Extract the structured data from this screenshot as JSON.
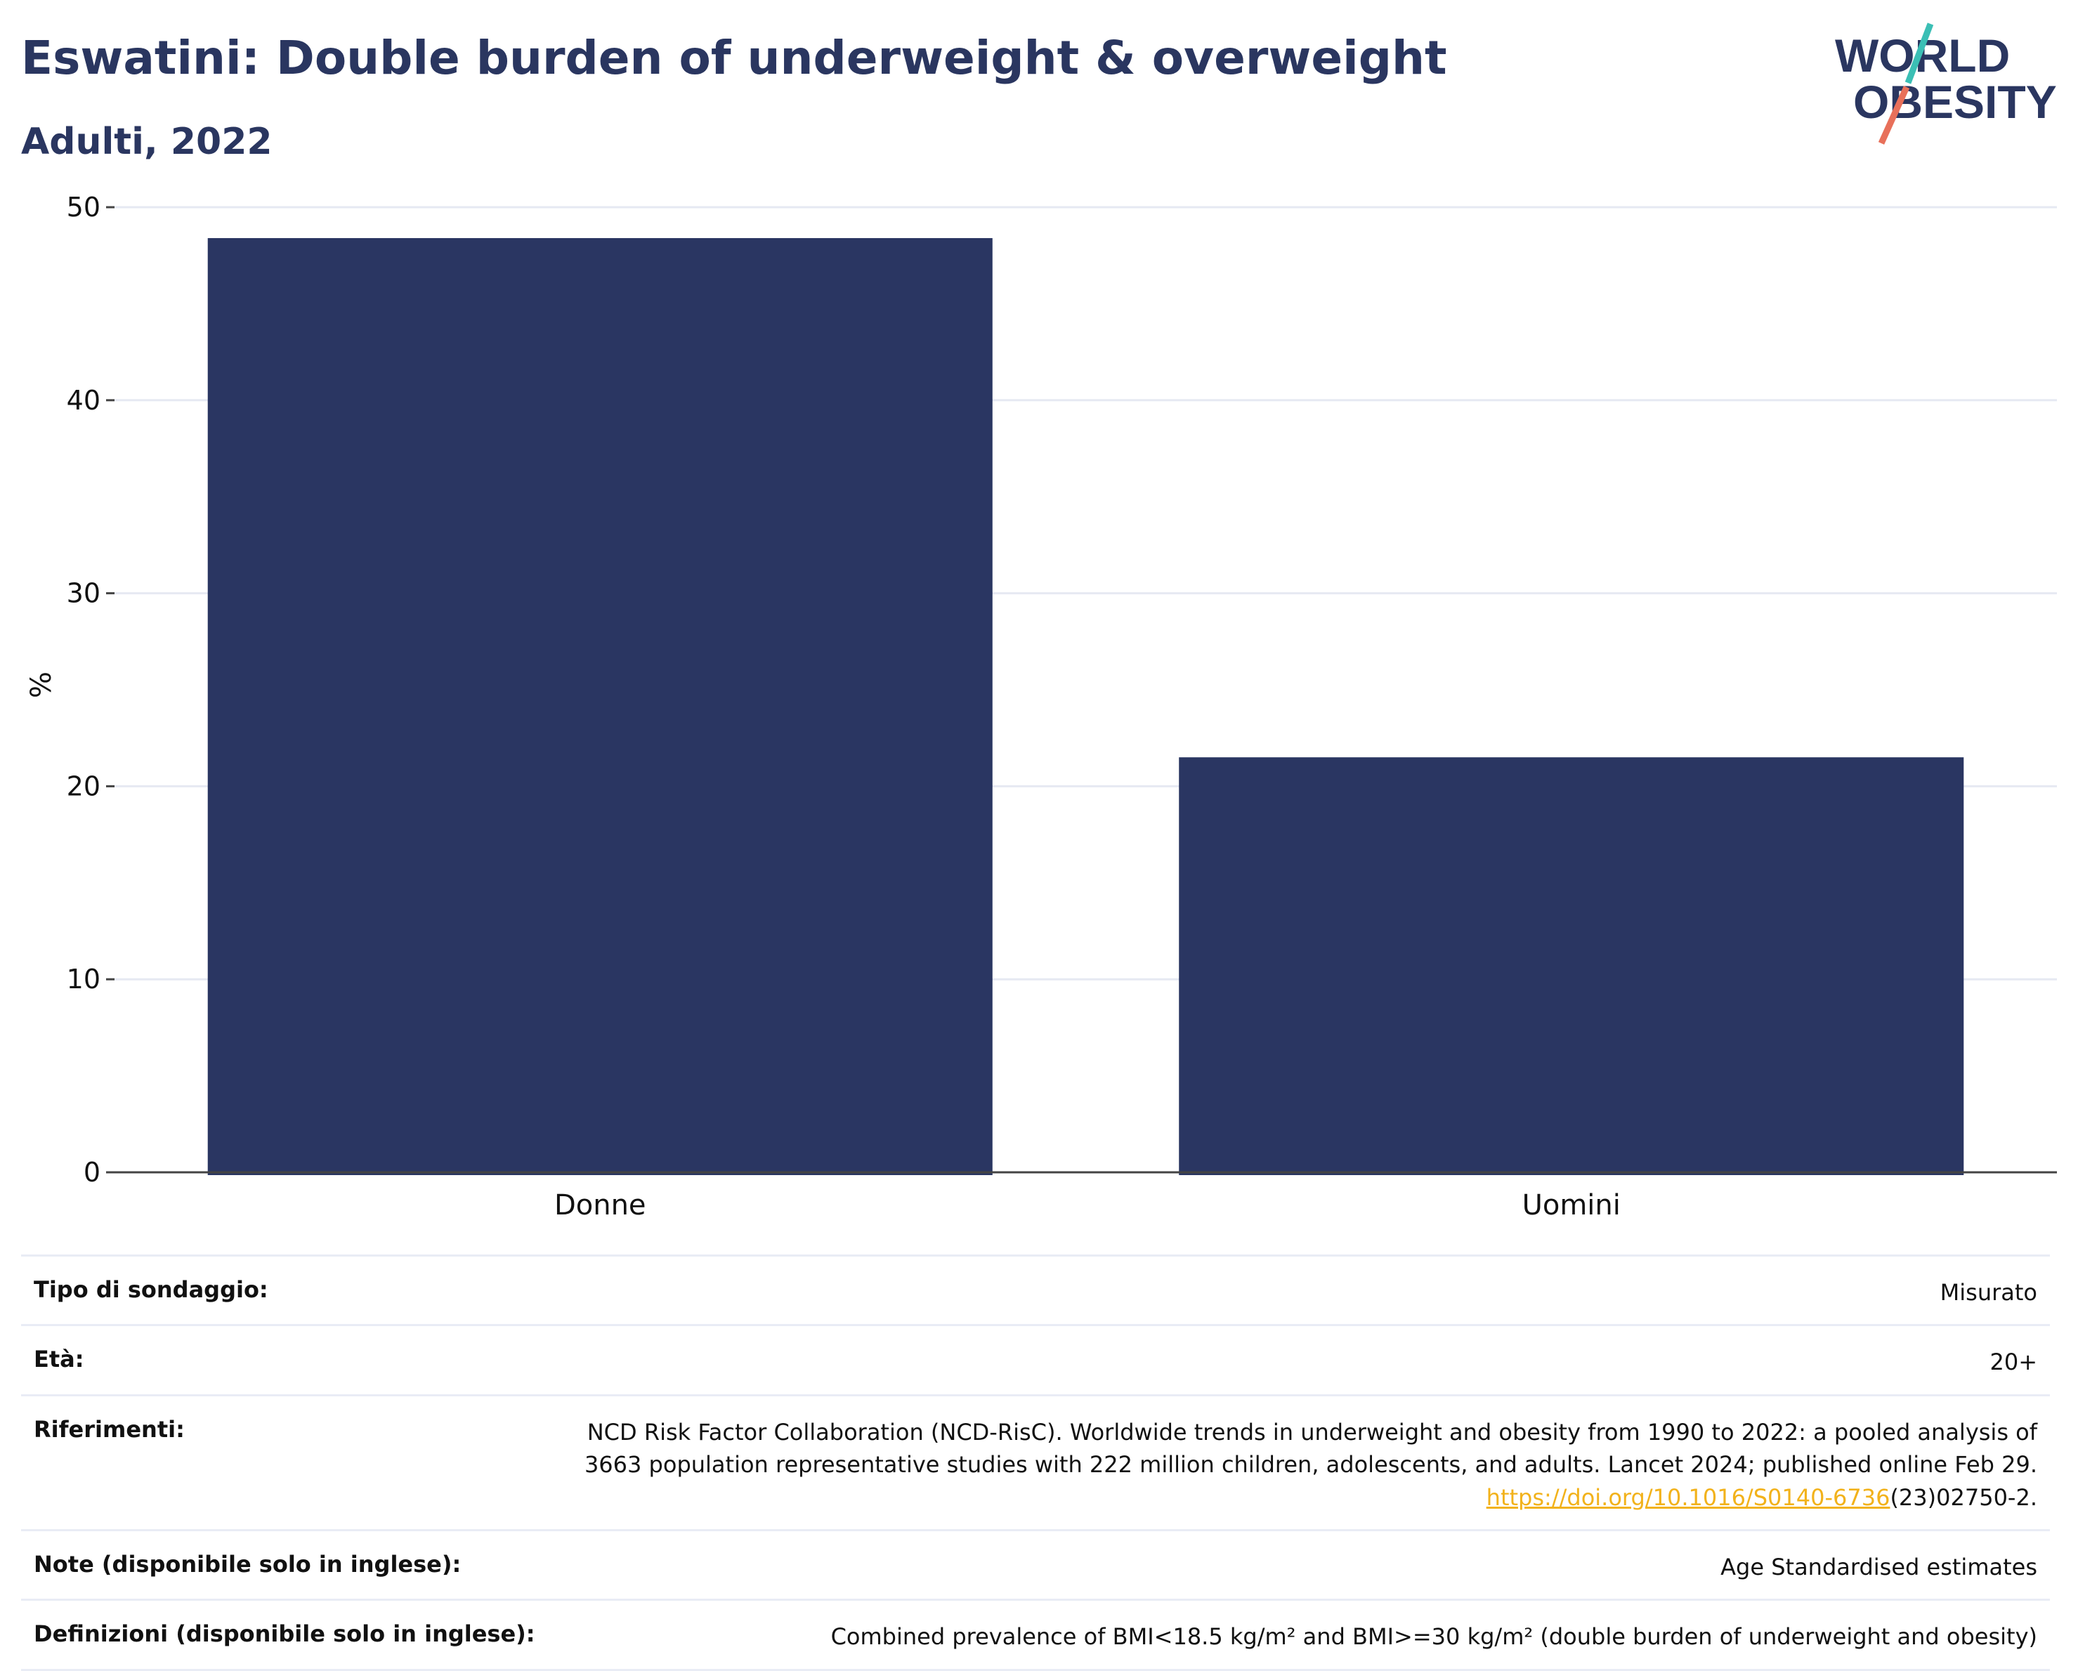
{
  "header": {
    "title": "Eswatini: Double burden of underweight & overweight",
    "subtitle": "Adulti, 2022",
    "logo_line1": "WORLD",
    "logo_line2": "OBESITY"
  },
  "chart_data": {
    "type": "bar",
    "categories": [
      "Donne",
      "Uomini"
    ],
    "values": [
      48.4,
      21.5
    ],
    "ylabel": "%",
    "ylim": [
      0,
      50
    ],
    "yticks": [
      0,
      10,
      20,
      30,
      40,
      50
    ],
    "grid": true,
    "bar_color": "#2a3662"
  },
  "info": {
    "rows": [
      {
        "label": "Tipo di sondaggio:",
        "value": "Misurato"
      },
      {
        "label": "Età:",
        "value": "20+"
      },
      {
        "label": "Riferimenti:",
        "value_line1": "NCD Risk Factor Collaboration (NCD-RisC). Worldwide trends in underweight and obesity from 1990 to 2022: a pooled analysis of",
        "value_line2": "3663 population representative studies with 222 million children, adolescents, and adults. Lancet 2024; published online Feb 29.",
        "link_text": "https://doi.org/10.1016/S0140-6736",
        "link_suffix": "(23)02750-2."
      },
      {
        "label": "Note (disponibile solo in inglese):",
        "value": "Age Standardised estimates"
      },
      {
        "label": "Definizioni (disponibile solo in inglese):",
        "value": "Combined prevalence of BMI<18.5 kg/m² and BMI>=30 kg/m² (double burden of underweight and obesity)"
      }
    ]
  },
  "colors": {
    "title": "#2a3660",
    "bar": "#2a3662",
    "grid": "#e6e9f2",
    "link": "#f2b21b",
    "logo_teal": "#3bbfb5",
    "logo_coral": "#e8705a"
  }
}
